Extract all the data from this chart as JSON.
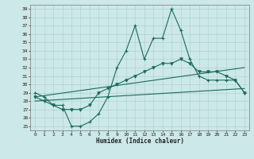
{
  "xlabel": "Humidex (Indice chaleur)",
  "bg_color": "#cce8e8",
  "line_color": "#1a6b5a",
  "grid_color": "#aacece",
  "xlim": [
    -0.5,
    23.5
  ],
  "ylim": [
    24.5,
    39.5
  ],
  "yticks": [
    25,
    26,
    27,
    28,
    29,
    30,
    31,
    32,
    33,
    34,
    35,
    36,
    37,
    38,
    39
  ],
  "xticks": [
    0,
    1,
    2,
    3,
    4,
    5,
    6,
    7,
    8,
    9,
    10,
    11,
    12,
    13,
    14,
    15,
    16,
    17,
    18,
    19,
    20,
    21,
    22,
    23
  ],
  "line1_x": [
    0,
    1,
    2,
    3,
    4,
    5,
    6,
    7,
    8,
    9,
    10,
    11,
    12,
    13,
    14,
    15,
    16,
    17,
    18,
    19,
    20,
    21,
    22,
    23
  ],
  "line1_y": [
    29.0,
    28.5,
    27.5,
    27.5,
    25.0,
    25.0,
    25.5,
    26.5,
    28.5,
    32.0,
    34.0,
    37.0,
    33.0,
    35.5,
    35.5,
    39.0,
    36.5,
    33.0,
    31.0,
    30.5,
    30.5,
    30.5,
    30.5,
    29.0
  ],
  "line2_x": [
    0,
    1,
    2,
    3,
    4,
    5,
    6,
    7,
    8,
    9,
    10,
    11,
    12,
    13,
    14,
    15,
    16,
    17,
    18,
    19,
    20,
    21,
    22,
    23
  ],
  "line2_y": [
    28.5,
    28.0,
    27.5,
    27.0,
    27.0,
    27.0,
    27.5,
    29.0,
    29.5,
    30.0,
    30.5,
    31.0,
    31.5,
    32.0,
    32.5,
    32.5,
    33.0,
    32.5,
    31.5,
    31.5,
    31.5,
    31.0,
    30.5,
    29.0
  ],
  "line3_x": [
    0,
    23
  ],
  "line3_y": [
    28.5,
    32.0
  ],
  "line4_x": [
    0,
    23
  ],
  "line4_y": [
    28.0,
    29.5
  ]
}
